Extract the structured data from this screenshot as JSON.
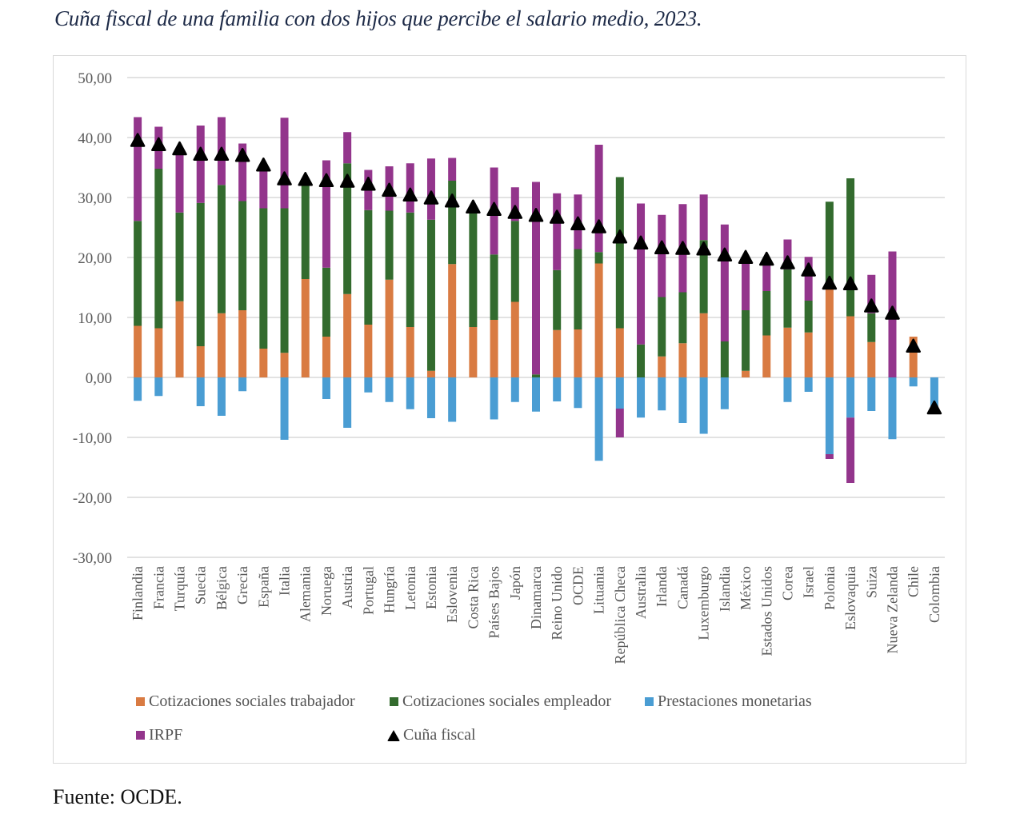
{
  "title": "Cuña fiscal de una familia con dos hijos que percibe el salario medio, 2023.",
  "source": "Fuente: OCDE.",
  "chart_data": {
    "type": "bar",
    "stacked": true,
    "title": "Cuña fiscal de una familia con dos hijos que percibe el salario medio, 2023.",
    "xlabel": "",
    "ylabel": "",
    "ylim": [
      -30,
      50
    ],
    "yticks": [
      50,
      40,
      30,
      20,
      10,
      0,
      -10,
      -20,
      -30
    ],
    "ytick_labels": [
      "50,00",
      "40,00",
      "30,00",
      "20,00",
      "10,00",
      "0,00",
      "-10,00",
      "-20,00",
      "-30,00"
    ],
    "grid": true,
    "legend_position": "bottom",
    "categories": [
      "Finlandia",
      "Francia",
      "Turquía",
      "Suecia",
      "Bélgica",
      "Grecia",
      "España",
      "Italia",
      "Alemania",
      "Noruega",
      "Austria",
      "Portugal",
      "Hungría",
      "Letonia",
      "Estonia",
      "Eslovenia",
      "Costa Rica",
      "Países Bajos",
      "Japón",
      "Dinamarca",
      "Reino Unido",
      "OCDE",
      "Lituania",
      "República Checa",
      "Australia",
      "Irlanda",
      "Canadá",
      "Luxemburgo",
      "Islandia",
      "México",
      "Estados Unidos",
      "Corea",
      "Israel",
      "Polonia",
      "Eslovaquia",
      "Suiza",
      "Nueva Zelanda",
      "Chile",
      "Colombia"
    ],
    "series": [
      {
        "name": "Cotizaciones sociales trabajador",
        "color": "#d97b42",
        "kind": "bar",
        "values": [
          8.6,
          8.2,
          12.7,
          5.2,
          10.7,
          11.2,
          4.8,
          4.1,
          16.4,
          6.8,
          13.9,
          8.8,
          16.3,
          8.4,
          1.1,
          18.9,
          8.4,
          9.6,
          12.6,
          0.0,
          7.9,
          8.0,
          19.0,
          8.2,
          0.0,
          3.5,
          5.7,
          10.7,
          0.0,
          1.1,
          7.0,
          8.3,
          7.5,
          14.8,
          10.2,
          5.9,
          0.0,
          6.8,
          0.0
        ]
      },
      {
        "name": "Cotizaciones sociales empleador",
        "color": "#336b2e",
        "kind": "bar",
        "values": [
          17.5,
          26.6,
          14.8,
          23.9,
          21.4,
          18.2,
          23.4,
          24.1,
          16.4,
          11.5,
          21.8,
          19.1,
          11.5,
          19.1,
          25.2,
          13.9,
          19.4,
          10.9,
          13.5,
          0.5,
          10.0,
          13.4,
          1.9,
          25.2,
          5.5,
          9.9,
          8.5,
          12.2,
          6.0,
          10.1,
          7.4,
          9.7,
          5.3,
          14.5,
          23.0,
          4.8,
          0.0,
          0.0,
          0.0
        ]
      },
      {
        "name": "Prestaciones monetarias",
        "color": "#4a9dd3",
        "kind": "bar",
        "values": [
          -3.9,
          -3.1,
          0.0,
          -4.8,
          -6.4,
          -2.3,
          0.0,
          -10.4,
          0.0,
          -3.6,
          -8.4,
          -2.5,
          -4.1,
          -5.3,
          -6.8,
          -7.4,
          0.0,
          -7.0,
          -4.1,
          -5.7,
          -4.0,
          -5.1,
          -13.9,
          -5.2,
          -6.7,
          -5.5,
          -7.6,
          -9.4,
          -5.3,
          0.0,
          0.0,
          -4.1,
          -2.4,
          -12.8,
          -6.7,
          -5.6,
          -10.3,
          -1.5,
          -5.3
        ]
      },
      {
        "name": "IRPF",
        "color": "#93358c",
        "kind": "bar",
        "values": [
          17.3,
          7.0,
          10.5,
          12.9,
          11.3,
          9.6,
          7.4,
          15.1,
          0.4,
          17.9,
          5.2,
          6.7,
          7.4,
          8.2,
          10.2,
          3.8,
          0.0,
          14.5,
          5.6,
          32.1,
          12.8,
          9.1,
          17.9,
          -4.8,
          23.5,
          13.7,
          14.7,
          7.6,
          19.5,
          8.3,
          4.9,
          5.0,
          7.3,
          -0.8,
          -10.9,
          6.4,
          21.0,
          0.0,
          0.0
        ]
      },
      {
        "name": "Cuña fiscal",
        "color": "#000000",
        "kind": "marker-triangle",
        "values": [
          39.4,
          38.7,
          38.0,
          37.1,
          37.1,
          36.9,
          35.3,
          33.0,
          32.9,
          32.7,
          32.6,
          32.1,
          31.1,
          30.3,
          29.8,
          29.3,
          28.3,
          27.9,
          27.4,
          26.9,
          26.6,
          25.5,
          25.0,
          23.3,
          22.3,
          21.5,
          21.4,
          21.3,
          20.3,
          19.9,
          19.6,
          19.0,
          17.8,
          15.6,
          15.5,
          11.8,
          10.6,
          5.1,
          -5.2
        ]
      }
    ]
  },
  "legend": [
    {
      "label": "Cotizaciones sociales trabajador",
      "color": "#d97b42",
      "icon": "square"
    },
    {
      "label": "Cotizaciones sociales empleador",
      "color": "#336b2e",
      "icon": "square"
    },
    {
      "label": "Prestaciones monetarias",
      "color": "#4a9dd3",
      "icon": "square"
    },
    {
      "label": "IRPF",
      "color": "#93358c",
      "icon": "square"
    },
    {
      "label": "Cuña fiscal",
      "color": "#000000",
      "icon": "triangle"
    }
  ]
}
